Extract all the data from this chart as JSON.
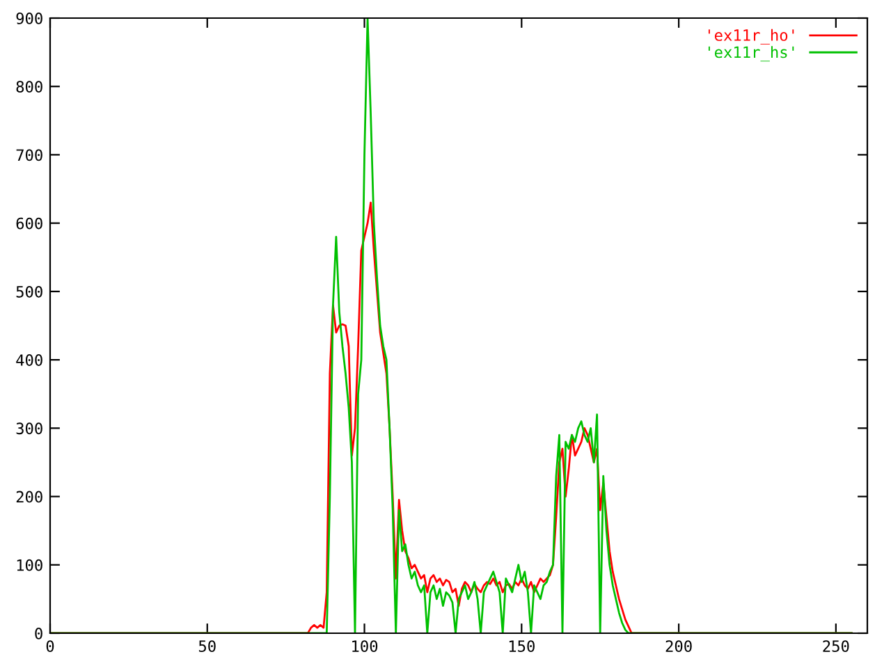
{
  "chart_data": {
    "type": "line",
    "xlim": [
      0,
      260
    ],
    "ylim": [
      0,
      900
    ],
    "xticks": [
      0,
      50,
      100,
      150,
      200,
      250
    ],
    "yticks": [
      0,
      100,
      200,
      300,
      400,
      500,
      600,
      700,
      800,
      900
    ],
    "grid": false,
    "legend": "top right",
    "marker": "none",
    "line_style": "solid",
    "series": [
      {
        "name": "'ex11r_ho'",
        "color": "#ff0000",
        "x": [
          0,
          82,
          83,
          84,
          85,
          86,
          87,
          88,
          89,
          90,
          91,
          92,
          93,
          94,
          95,
          96,
          97,
          98,
          99,
          100,
          101,
          102,
          103,
          104,
          105,
          106,
          107,
          108,
          109,
          110,
          111,
          112,
          113,
          114,
          115,
          116,
          117,
          118,
          119,
          120,
          121,
          122,
          123,
          124,
          125,
          126,
          127,
          128,
          129,
          130,
          131,
          132,
          133,
          134,
          135,
          136,
          137,
          138,
          139,
          140,
          141,
          142,
          143,
          144,
          145,
          146,
          147,
          148,
          149,
          150,
          151,
          152,
          153,
          154,
          155,
          156,
          157,
          158,
          159,
          160,
          161,
          162,
          163,
          164,
          165,
          166,
          167,
          168,
          169,
          170,
          171,
          172,
          173,
          174,
          175,
          176,
          177,
          178,
          179,
          180,
          181,
          182,
          183,
          184,
          185,
          255
        ],
        "values": [
          0,
          0,
          8,
          12,
          8,
          12,
          8,
          60,
          380,
          480,
          440,
          450,
          452,
          450,
          420,
          260,
          300,
          420,
          560,
          580,
          600,
          630,
          560,
          500,
          440,
          410,
          380,
          300,
          200,
          80,
          195,
          150,
          120,
          110,
          95,
          100,
          90,
          80,
          85,
          60,
          80,
          85,
          75,
          80,
          70,
          78,
          75,
          60,
          65,
          40,
          65,
          75,
          70,
          60,
          72,
          65,
          60,
          70,
          75,
          72,
          80,
          70,
          75,
          60,
          70,
          72,
          65,
          75,
          70,
          80,
          70,
          65,
          75,
          60,
          70,
          80,
          75,
          80,
          85,
          100,
          170,
          250,
          270,
          200,
          240,
          290,
          260,
          270,
          280,
          300,
          290,
          270,
          250,
          270,
          180,
          220,
          170,
          120,
          90,
          70,
          50,
          35,
          20,
          10,
          0,
          0
        ]
      },
      {
        "name": "'ex11r_hs'",
        "color": "#00c000",
        "x": [
          0,
          88,
          89,
          90,
          91,
          92,
          93,
          94,
          95,
          96,
          97,
          98,
          99,
          100,
          101,
          102,
          103,
          104,
          105,
          106,
          107,
          108,
          109,
          110,
          111,
          112,
          113,
          114,
          115,
          116,
          117,
          118,
          119,
          120,
          121,
          122,
          123,
          124,
          125,
          126,
          127,
          128,
          129,
          130,
          131,
          132,
          133,
          134,
          135,
          136,
          137,
          138,
          139,
          140,
          141,
          142,
          143,
          144,
          145,
          146,
          147,
          148,
          149,
          150,
          151,
          152,
          153,
          154,
          155,
          156,
          157,
          158,
          159,
          160,
          161,
          162,
          163,
          164,
          165,
          166,
          167,
          168,
          169,
          170,
          171,
          172,
          173,
          174,
          175,
          176,
          177,
          178,
          179,
          180,
          181,
          182,
          183,
          184,
          255
        ],
        "values": [
          0,
          0,
          200,
          480,
          580,
          470,
          420,
          380,
          330,
          250,
          0,
          350,
          400,
          700,
          900,
          760,
          600,
          520,
          450,
          420,
          400,
          300,
          180,
          0,
          180,
          120,
          130,
          100,
          80,
          90,
          70,
          60,
          70,
          0,
          60,
          70,
          50,
          65,
          40,
          60,
          55,
          45,
          0,
          50,
          60,
          70,
          50,
          60,
          75,
          50,
          0,
          60,
          70,
          80,
          90,
          75,
          60,
          0,
          80,
          70,
          60,
          80,
          100,
          75,
          90,
          60,
          0,
          70,
          60,
          50,
          70,
          75,
          90,
          100,
          230,
          290,
          0,
          280,
          270,
          290,
          280,
          300,
          310,
          290,
          280,
          300,
          250,
          320,
          0,
          230,
          150,
          100,
          70,
          50,
          30,
          15,
          5,
          0,
          0
        ]
      }
    ]
  }
}
